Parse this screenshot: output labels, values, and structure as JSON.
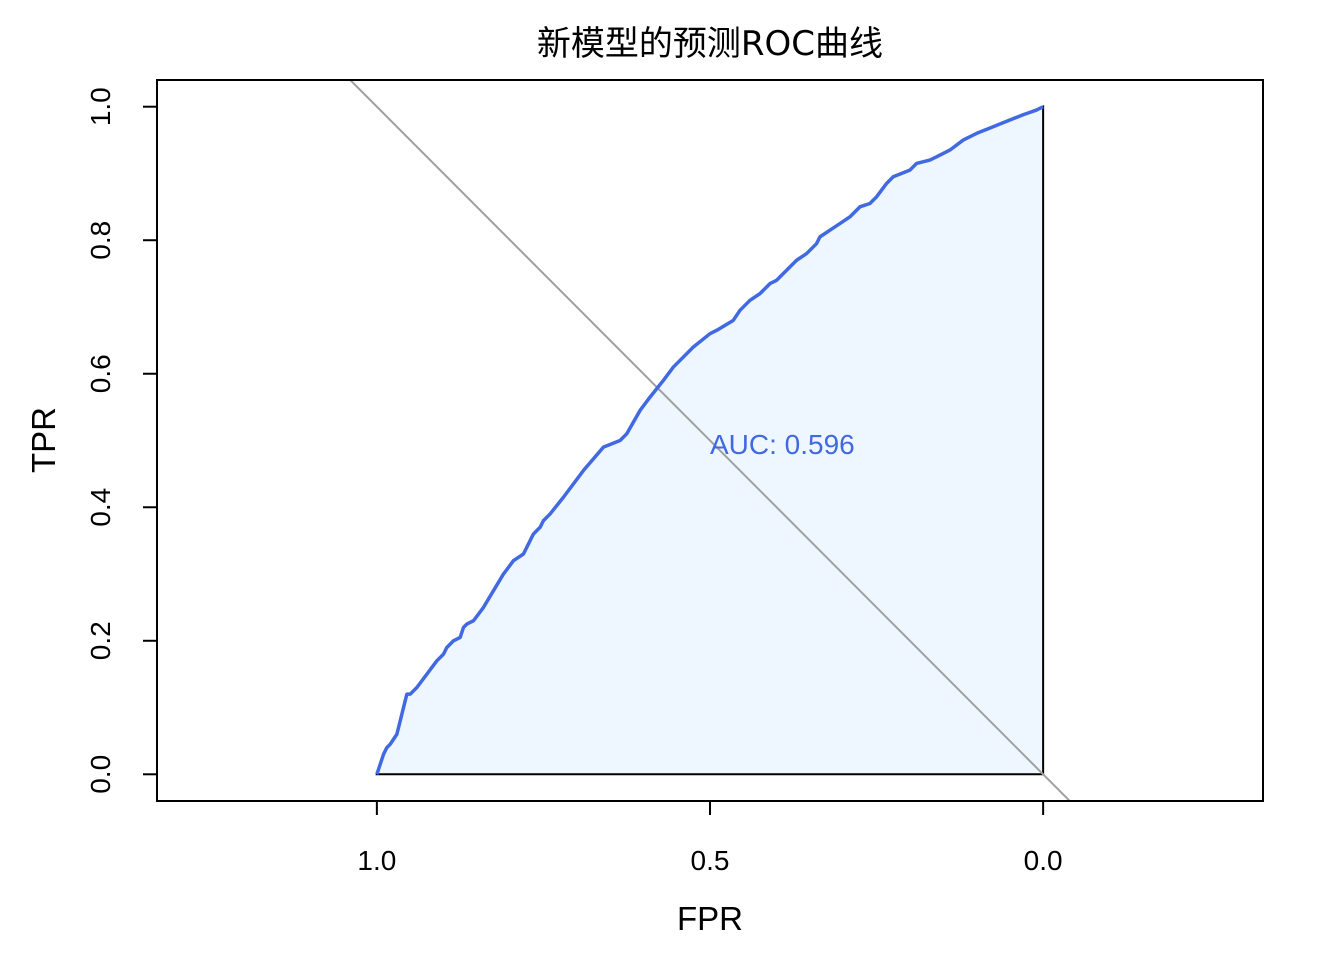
{
  "chart_data": {
    "type": "line",
    "title": "新模型的预测ROC曲线",
    "xlabel": "FPR",
    "ylabel": "TPR",
    "x_reversed": true,
    "xlim": [
      1.33,
      -0.33
    ],
    "ylim": [
      -0.04,
      1.04
    ],
    "x_ticks": [
      1.0,
      0.5,
      0.0
    ],
    "x_tick_labels": [
      "1.0",
      "0.5",
      "0.0"
    ],
    "y_ticks": [
      0.0,
      0.2,
      0.4,
      0.6,
      0.8,
      1.0
    ],
    "y_tick_labels": [
      "0.0",
      "0.2",
      "0.4",
      "0.6",
      "0.8",
      "1.0"
    ],
    "grid": false,
    "annotation": {
      "text": "AUC: 0.596",
      "x": 0.5,
      "y": 0.48
    },
    "colors": {
      "curve": "#4169E1",
      "fill": "#EEF6FF",
      "diagonal": "#A0A0A0",
      "auc_text": "#4169E1"
    },
    "series": [
      {
        "x": [
          1.0,
          0.99,
          0.985,
          0.98,
          0.97,
          0.965,
          0.96,
          0.955,
          0.95,
          0.94,
          0.925,
          0.91,
          0.9,
          0.895,
          0.885,
          0.875,
          0.87,
          0.865,
          0.855,
          0.84,
          0.825,
          0.81,
          0.795,
          0.78,
          0.765,
          0.755,
          0.75,
          0.74,
          0.72,
          0.69,
          0.66,
          0.635,
          0.625,
          0.605,
          0.59,
          0.57,
          0.555,
          0.54,
          0.525,
          0.5,
          0.49,
          0.465,
          0.455,
          0.44,
          0.425,
          0.41,
          0.4,
          0.385,
          0.37,
          0.355,
          0.34,
          0.335,
          0.32,
          0.305,
          0.29,
          0.275,
          0.26,
          0.25,
          0.235,
          0.225,
          0.2,
          0.19,
          0.17,
          0.16,
          0.14,
          0.12,
          0.1,
          0.075,
          0.05,
          0.03,
          0.01,
          0.0
        ],
        "y": [
          0.0,
          0.03,
          0.04,
          0.045,
          0.06,
          0.08,
          0.1,
          0.12,
          0.12,
          0.13,
          0.15,
          0.17,
          0.18,
          0.19,
          0.2,
          0.205,
          0.22,
          0.225,
          0.23,
          0.25,
          0.275,
          0.3,
          0.32,
          0.33,
          0.36,
          0.37,
          0.38,
          0.39,
          0.415,
          0.455,
          0.49,
          0.5,
          0.51,
          0.545,
          0.565,
          0.59,
          0.61,
          0.625,
          0.64,
          0.66,
          0.665,
          0.68,
          0.695,
          0.71,
          0.72,
          0.735,
          0.74,
          0.755,
          0.77,
          0.78,
          0.795,
          0.805,
          0.815,
          0.825,
          0.835,
          0.85,
          0.855,
          0.865,
          0.885,
          0.895,
          0.905,
          0.915,
          0.92,
          0.925,
          0.935,
          0.95,
          0.96,
          0.97,
          0.98,
          0.988,
          0.995,
          1.0
        ]
      }
    ]
  }
}
